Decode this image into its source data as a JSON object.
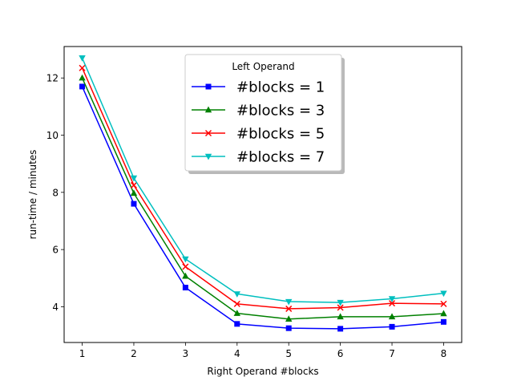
{
  "chart_data": {
    "type": "line",
    "title": "",
    "xlabel": "Right Operand #blocks",
    "ylabel": "run-time / minutes",
    "x": [
      1,
      2,
      3,
      4,
      5,
      6,
      7,
      8
    ],
    "xlim": [
      0.65,
      8.35
    ],
    "ylim": [
      2.75,
      13.1
    ],
    "xticks": [
      1,
      2,
      3,
      4,
      5,
      6,
      7,
      8
    ],
    "yticks": [
      4,
      6,
      8,
      10,
      12
    ],
    "grid": false,
    "legend": {
      "title": "Left Operand",
      "placement": "upper-center",
      "shadow": true
    },
    "series": [
      {
        "name": "#blocks = 1",
        "color": "#0000ff",
        "marker": "square",
        "values": [
          11.7,
          7.6,
          4.67,
          3.4,
          3.25,
          3.23,
          3.3,
          3.47
        ]
      },
      {
        "name": "#blocks = 3",
        "color": "#008000",
        "marker": "triangle-up",
        "values": [
          12.0,
          7.97,
          5.07,
          3.77,
          3.57,
          3.65,
          3.65,
          3.76
        ]
      },
      {
        "name": "#blocks = 5",
        "color": "#ff0000",
        "marker": "x",
        "values": [
          12.35,
          8.25,
          5.4,
          4.1,
          3.93,
          3.97,
          4.12,
          4.1
        ]
      },
      {
        "name": "#blocks = 7",
        "color": "#00bfbf",
        "marker": "triangle-down",
        "values": [
          12.7,
          8.5,
          5.67,
          4.45,
          4.18,
          4.15,
          4.28,
          4.47
        ]
      }
    ]
  }
}
